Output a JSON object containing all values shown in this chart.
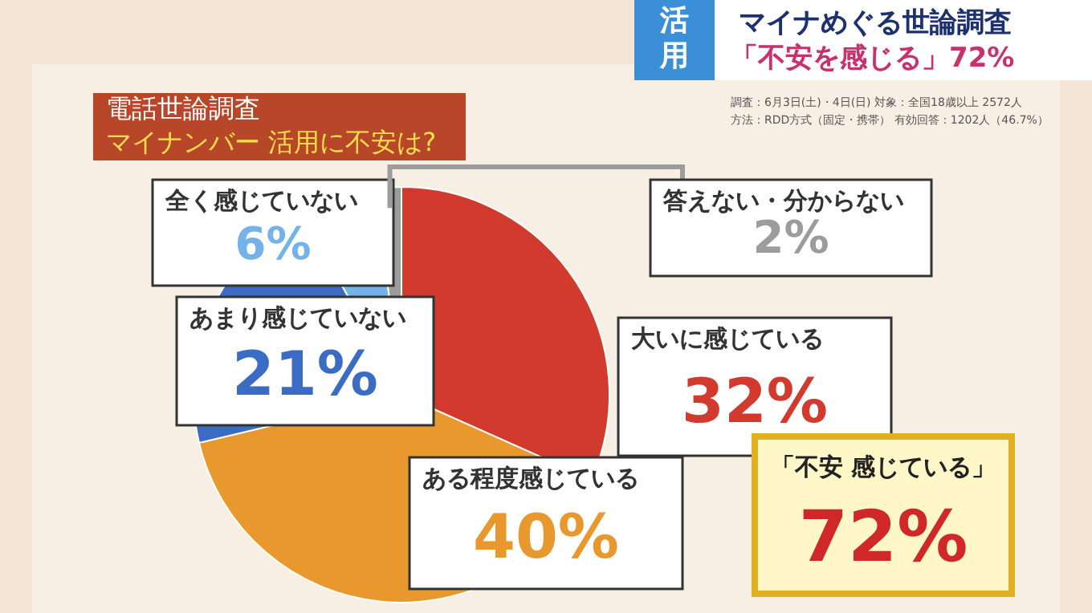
{
  "chart_data": {
    "type": "pie",
    "title": "電話世論調査",
    "subtitle": "マイナンバー 活用に不安は?",
    "categories": [
      "大いに感じている",
      "ある程度感じている",
      "あまり感じていない",
      "全く感じていない",
      "答えない・分からない"
    ],
    "values": [
      32,
      40,
      21,
      6,
      2
    ],
    "colors": [
      "#d23a2e",
      "#e8982c",
      "#3a6cc4",
      "#74b2ea",
      "#9c9c9c"
    ],
    "value_labels": [
      "32%",
      "40%",
      "21%",
      "6%",
      "2%"
    ],
    "legend": false,
    "annotations": [
      "活用",
      "マイナめぐる世論調査",
      "「不安を感じる」72%",
      "調査：6月3日(土)・4日(日) 対象：全国18歳以上 2572人",
      "方法：RDD方式（固定・携帯） 有効回答：1202人（46.7%）",
      "「不安 感じている」",
      "72%"
    ]
  }
}
